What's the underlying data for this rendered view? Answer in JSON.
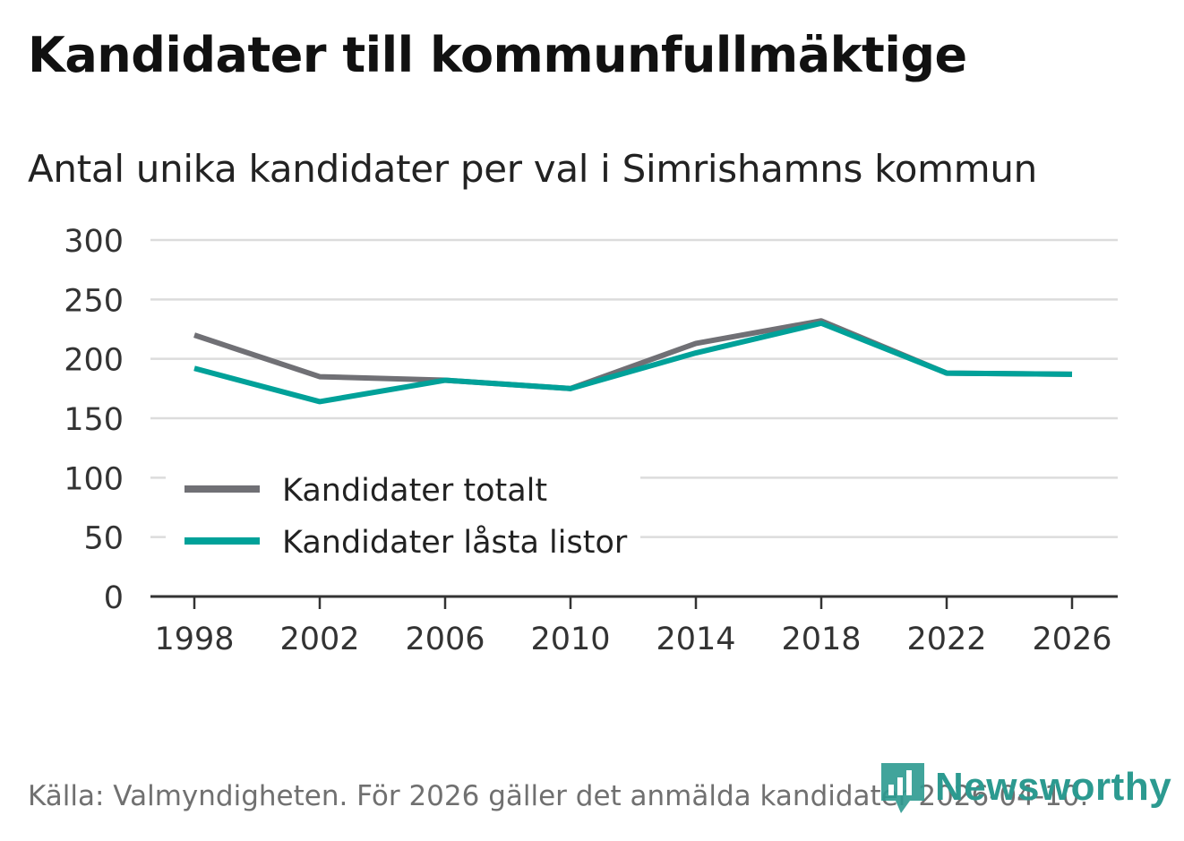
{
  "header": {
    "title": "Kandidater till kommunfullmäktige",
    "subtitle": "Antal unika kandidater per val i Simrishamns kommun"
  },
  "footer": {
    "source": "Källa: Valmyndigheten. För 2026 gäller det anmälda kandidater 2026-04-10."
  },
  "brand": {
    "name": "Newsworthy",
    "icon": "newsworthy-logo-icon",
    "color": "#2c9a90"
  },
  "chart_data": {
    "type": "line",
    "title": "Kandidater till kommunfullmäktige",
    "subtitle": "Antal unika kandidater per val i Simrishamns kommun",
    "xlabel": "",
    "ylabel": "",
    "categories": [
      "1998",
      "2002",
      "2006",
      "2010",
      "2014",
      "2018",
      "2022",
      "2026"
    ],
    "yticks": [
      "0",
      "50",
      "100",
      "150",
      "200",
      "250",
      "300"
    ],
    "ylim": [
      0,
      300
    ],
    "grid": true,
    "legend_position": "bottom-left",
    "series": [
      {
        "name": "Kandidater totalt",
        "color": "#707075",
        "values": [
          220,
          185,
          182,
          175,
          213,
          232,
          188,
          187
        ]
      },
      {
        "name": "Kandidater låsta listor",
        "color": "#00a199",
        "values": [
          192,
          164,
          182,
          175,
          205,
          230,
          188,
          187
        ]
      }
    ]
  }
}
